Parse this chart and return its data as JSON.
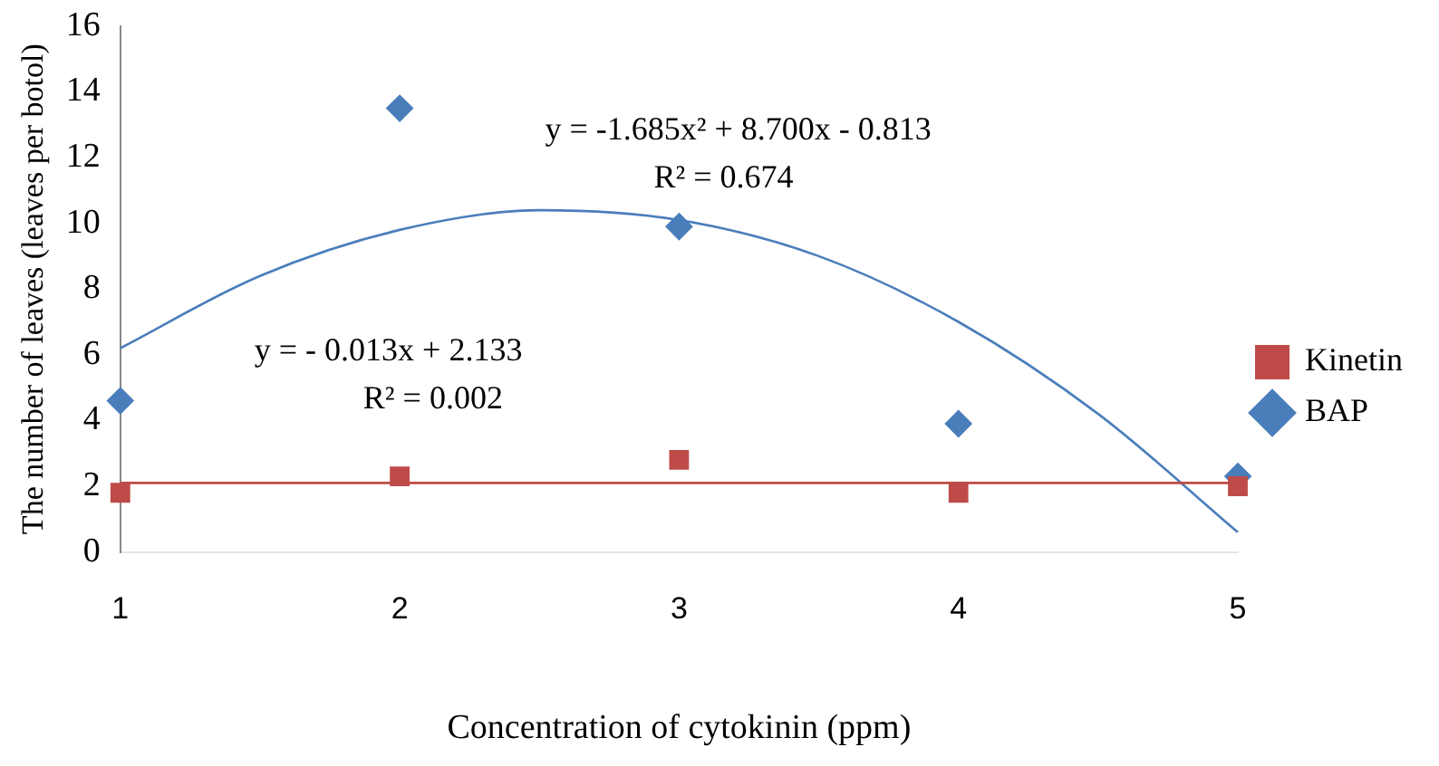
{
  "chart_data": {
    "type": "scatter",
    "xlabel": "Concentration of cytokinin (ppm)",
    "ylabel": "The number of leaves (leaves per botol)",
    "xlim": [
      1,
      5
    ],
    "xticks": [
      1,
      2,
      3,
      4,
      5
    ],
    "ylim": [
      0,
      16
    ],
    "yticks": [
      0,
      2,
      4,
      6,
      8,
      10,
      12,
      14,
      16
    ],
    "grid": false,
    "legend": "right",
    "marker": "diamond",
    "series": [
      {
        "name": "BAP",
        "color": "#4a7ebb",
        "x": [
          1,
          2,
          3,
          4,
          5
        ],
        "values": [
          4.6,
          13.5,
          9.9,
          3.9,
          2.3
        ]
      },
      {
        "name": "Kinetin",
        "color": "#be4b48",
        "marker": "square",
        "x": [
          1,
          2,
          3,
          4,
          5
        ],
        "values": [
          1.8,
          2.3,
          2.8,
          1.8,
          2.0
        ]
      },
      {
        "type": "line",
        "color": "#4a7ebb",
        "marker": "none",
        "x": [
          1,
          1.5,
          2,
          2.5,
          3,
          3.5,
          4,
          4.5,
          5
        ],
        "values": [
          6.2,
          8.4,
          9.8,
          10.4,
          10.1,
          9.0,
          7.0,
          4.2,
          0.6
        ]
      },
      {
        "type": "line",
        "color": "#be4b48",
        "marker": "none",
        "x": [
          1,
          5
        ],
        "values": [
          2.1,
          2.1
        ]
      }
    ],
    "annotations": [
      "y = -1.685x² + 8.700x - 0.813",
      "R² = 0.674",
      "y = - 0.013x + 2.133",
      "R² = 0.002"
    ]
  }
}
